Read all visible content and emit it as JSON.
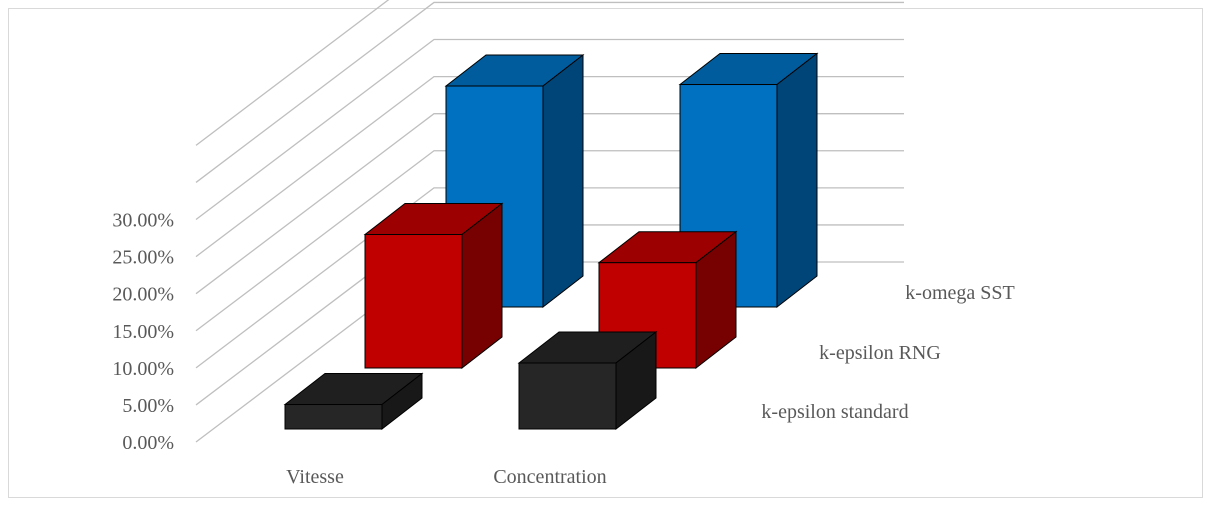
{
  "chart_data": {
    "type": "bar",
    "style": "3d-clustered-column",
    "categories": [
      "Vitesse",
      "Concentration"
    ],
    "series": [
      {
        "name": "k-epsilon standard",
        "values": [
          3.3,
          8.9
        ],
        "color": "#262626"
      },
      {
        "name": "k-epsilon RNG",
        "values": [
          18.0,
          14.2
        ],
        "color": "#c00000"
      },
      {
        "name": "k-omega SST",
        "values": [
          29.8,
          30.0
        ],
        "color": "#0070c0"
      }
    ],
    "y_ticks": [
      "0.00%",
      "5.00%",
      "10.00%",
      "15.00%",
      "20.00%",
      "25.00%",
      "30.00%"
    ],
    "ylim": [
      0,
      30
    ],
    "y_unit": "%",
    "gridlines": true,
    "legend_position": "depth-axis labels, right"
  }
}
